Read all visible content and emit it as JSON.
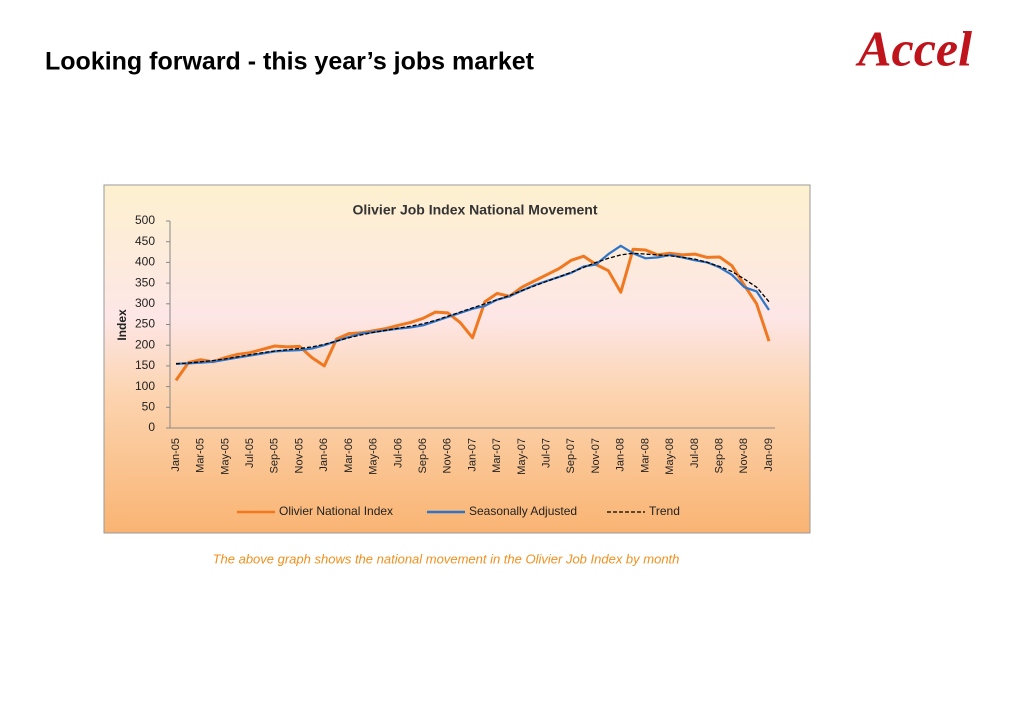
{
  "header": {
    "title": "Looking forward - this year’s jobs market",
    "logo": "Accel"
  },
  "chart_data": {
    "type": "line",
    "title": "Olivier Job Index National Movement",
    "y_label": "Index",
    "categories": [
      "Jan-05",
      null,
      "Mar-05",
      null,
      "May-05",
      null,
      "Jul-05",
      null,
      "Sep-05",
      null,
      "Nov-05",
      null,
      "Jan-06",
      null,
      "Mar-06",
      null,
      "May-06",
      null,
      "Jul-06",
      null,
      "Sep-06",
      null,
      "Nov-06",
      null,
      "Jan-07",
      null,
      "Mar-07",
      null,
      "May-07",
      null,
      "Jul-07",
      null,
      "Sep-07",
      null,
      "Nov-07",
      null,
      "Jan-08",
      null,
      "Mar-08",
      null,
      "May-08",
      null,
      "Jul-08",
      null,
      "Sep-08",
      null,
      "Nov-08",
      null,
      "Jan-09"
    ],
    "series": [
      {
        "name": "Olivier National Index",
        "color": "#f07820",
        "dash": false,
        "values": [
          115,
          158,
          165,
          160,
          170,
          178,
          182,
          190,
          198,
          196,
          197,
          170,
          150,
          215,
          228,
          230,
          235,
          240,
          248,
          255,
          265,
          280,
          278,
          255,
          218,
          305,
          325,
          318,
          340,
          355,
          370,
          385,
          405,
          415,
          395,
          380,
          328,
          432,
          430,
          418,
          422,
          418,
          420,
          412,
          413,
          392,
          345,
          300,
          210
        ]
      },
      {
        "name": "Seasonally Adjusted",
        "color": "#2e75c8",
        "dash": false,
        "values": [
          155,
          156,
          158,
          160,
          165,
          170,
          175,
          180,
          185,
          187,
          188,
          192,
          200,
          210,
          220,
          228,
          232,
          236,
          240,
          243,
          248,
          258,
          268,
          278,
          288,
          295,
          310,
          318,
          332,
          345,
          355,
          365,
          375,
          390,
          395,
          420,
          440,
          422,
          410,
          412,
          418,
          412,
          405,
          400,
          388,
          370,
          340,
          330,
          285
        ]
      },
      {
        "name": "Trend",
        "color": "#000000",
        "dash": true,
        "values": [
          155,
          157,
          160,
          163,
          167,
          172,
          177,
          182,
          186,
          189,
          192,
          196,
          202,
          210,
          218,
          225,
          231,
          236,
          241,
          246,
          252,
          260,
          270,
          280,
          290,
          300,
          310,
          320,
          332,
          343,
          354,
          365,
          376,
          388,
          400,
          410,
          418,
          422,
          420,
          418,
          416,
          412,
          408,
          400,
          390,
          378,
          360,
          340,
          305
        ]
      }
    ],
    "ylim": [
      0,
      500
    ],
    "yticks": [
      0,
      50,
      100,
      150,
      200,
      250,
      300,
      350,
      400,
      450,
      500
    ],
    "grid": false,
    "legend": "bottom"
  },
  "caption": "The above graph shows the national movement in the Olivier Job Index by month"
}
